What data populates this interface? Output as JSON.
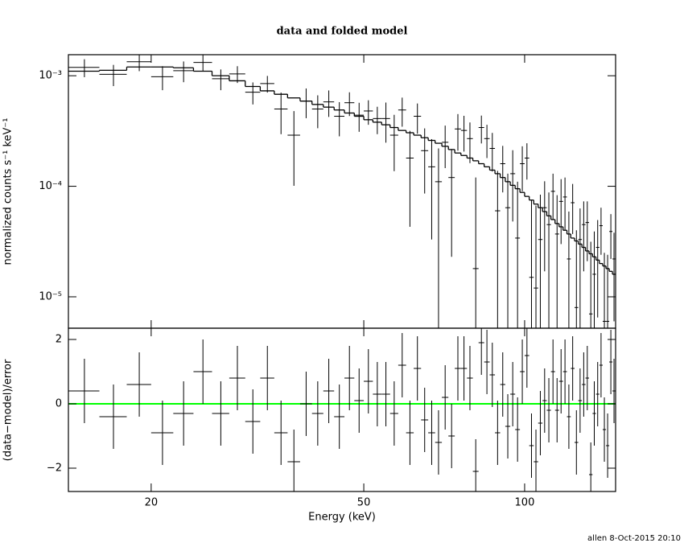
{
  "chart_data": [
    {
      "type": "errorbar",
      "title": "data and folded model",
      "ylabel": "normalized counts s⁻¹ keV⁻¹",
      "ylog": true,
      "xlog": true,
      "xlim": [
        14,
        148
      ],
      "ylim": [
        5.2e-06,
        0.00155
      ],
      "xticks": [
        20,
        50,
        100
      ],
      "yticks": [
        {
          "value": 0.001,
          "label": "10⁻³"
        },
        {
          "value": 0.0001,
          "label": "10⁻⁴"
        },
        {
          "value": 1e-05,
          "label": "10⁻⁵"
        }
      ],
      "color": "#000000",
      "xerr": 1,
      "x": [
        15,
        17,
        19,
        21,
        23,
        25,
        27,
        29,
        31,
        33,
        35,
        37,
        39,
        41,
        43,
        45,
        47,
        49,
        51,
        53,
        55,
        57,
        59,
        61,
        63,
        65,
        67,
        69,
        71,
        73,
        75,
        77,
        79,
        81,
        83,
        85,
        87,
        89,
        91,
        93,
        95,
        97,
        99,
        101,
        103,
        105,
        107,
        109,
        111,
        113,
        115,
        117,
        119,
        121,
        123,
        125,
        127,
        129,
        131,
        133,
        135,
        137,
        139,
        141,
        143,
        145,
        147
      ],
      "y": [
        0.00119,
        0.00103,
        0.00134,
        0.00098,
        0.00111,
        0.00132,
        0.00094,
        0.00104,
        0.00071,
        0.00085,
        0.0005,
        0.00029,
        0.00059,
        0.0005,
        0.00058,
        0.00043,
        0.00057,
        0.00044,
        0.00048,
        0.00041,
        0.00041,
        0.00029,
        0.00049,
        0.00018,
        0.00043,
        0.00021,
        0.00015,
        0.00011,
        0.00025,
        0.00012,
        0.00033,
        0.00032,
        0.00027,
        1.8e-05,
        0.00034,
        0.00027,
        0.00022,
        6e-05,
        0.00016,
        6.4e-05,
        0.00013,
        3.4e-05,
        0.00016,
        0.00018,
        1.5e-05,
        1.2e-05,
        3.3e-05,
        6.4e-05,
        4.5e-05,
        9e-05,
        3.7e-05,
        7.3e-05,
        8e-05,
        2.2e-05,
        7.1e-05,
        8e-06,
        3.3e-05,
        4.5e-05,
        4.7e-05,
        7e-06,
        1.6e-05,
        2.8e-05,
        4.4e-05,
        6e-06,
        6e-06,
        3.9e-05,
        2.2e-05
      ],
      "yerr": [
        0.00022,
        0.000224,
        0.00024,
        0.00024,
        0.000236,
        0.00022,
        0.0002,
        0.00018,
        0.00016,
        0.000146,
        0.000204,
        0.000189,
        0.000177,
        0.000165,
        0.000156,
        0.000147,
        0.000138,
        0.000129,
        0.00012,
        0.000114,
        0.000162,
        0.000153,
        0.000144,
        0.000137,
        0.000131,
        0.000124,
        0.000117,
        0.00011,
        0.000104,
        9.7e-05,
        0.00012,
        0.000114,
        0.000108,
        0.000102,
        9.6e-05,
        9e-05,
        8.4e-05,
        7.8e-05,
        7.2e-05,
        6.6e-05,
        8.2e-05,
        7.6e-05,
        7e-05,
        6.5e-05,
        6e-05,
        5.5e-05,
        5.1e-05,
        4.7e-05,
        4.3e-05,
        4e-05,
        4.6e-05,
        4.3e-05,
        4e-05,
        3.7e-05,
        3.4e-05,
        3.2e-05,
        3e-05,
        2.8e-05,
        2.6e-05,
        2.45e-05,
        2.3e-05,
        2.15e-05,
        2e-05,
        1.9e-05,
        1.8e-05,
        1.7e-05,
        1.6e-05
      ],
      "model": {
        "color": "#000000",
        "values": [
          0.0011,
          0.00112,
          0.0012,
          0.0012,
          0.00118,
          0.0011,
          0.001,
          0.0009,
          0.0008,
          0.00073,
          0.00068,
          0.00063,
          0.00059,
          0.00055,
          0.00052,
          0.00049,
          0.00046,
          0.00043,
          0.0004,
          0.00038,
          0.00036,
          0.00034,
          0.00032,
          0.000305,
          0.00029,
          0.000275,
          0.00026,
          0.000245,
          0.00023,
          0.000215,
          0.0002,
          0.00019,
          0.00018,
          0.00017,
          0.00016,
          0.00015,
          0.00014,
          0.00013,
          0.00012,
          0.00011,
          0.000102,
          9.5e-05,
          8.8e-05,
          8.1e-05,
          7.5e-05,
          6.9e-05,
          6.4e-05,
          5.9e-05,
          5.4e-05,
          5e-05,
          4.6e-05,
          4.3e-05,
          4e-05,
          3.7e-05,
          3.4e-05,
          3.2e-05,
          3e-05,
          2.8e-05,
          2.6e-05,
          2.45e-05,
          2.3e-05,
          2.15e-05,
          2e-05,
          1.9e-05,
          1.8e-05,
          1.7e-05,
          1.6e-05
        ]
      }
    },
    {
      "type": "errorbar",
      "xlabel": "Energy (keV)",
      "ylabel": "(data−model)/error",
      "xlog": true,
      "xlim": [
        14,
        148
      ],
      "ylim": [
        -2.725,
        2.35
      ],
      "xticks": [
        20,
        50,
        100
      ],
      "yticks": [
        {
          "value": 2,
          "label": "2"
        },
        {
          "value": 0,
          "label": "0"
        },
        {
          "value": -2,
          "label": "−2"
        }
      ],
      "color": "#000000",
      "xerr": 1,
      "x": [
        15,
        17,
        19,
        21,
        23,
        25,
        27,
        29,
        31,
        33,
        35,
        37,
        39,
        41,
        43,
        45,
        47,
        49,
        51,
        53,
        55,
        57,
        59,
        61,
        63,
        65,
        67,
        69,
        71,
        73,
        75,
        77,
        79,
        81,
        83,
        85,
        87,
        89,
        91,
        93,
        95,
        97,
        99,
        101,
        103,
        105,
        107,
        109,
        111,
        113,
        115,
        117,
        119,
        121,
        123,
        125,
        127,
        129,
        131,
        133,
        135,
        137,
        139,
        141,
        143,
        145,
        147
      ],
      "y": [
        0.4,
        -0.4,
        0.6,
        -0.9,
        -0.3,
        1.0,
        -0.3,
        0.8,
        -0.55,
        0.8,
        -0.9,
        -1.8,
        0.0,
        -0.3,
        0.4,
        -0.4,
        0.8,
        0.1,
        0.7,
        0.3,
        0.3,
        -0.3,
        1.2,
        -0.9,
        1.1,
        -0.5,
        -0.9,
        -1.2,
        0.2,
        -1.0,
        1.1,
        1.1,
        0.8,
        -2.1,
        1.9,
        1.3,
        0.9,
        -0.9,
        0.6,
        -0.7,
        0.3,
        -0.8,
        1.0,
        1.5,
        -1.3,
        -1.8,
        -0.6,
        0.1,
        -0.2,
        1.0,
        -0.2,
        0.7,
        1.0,
        -0.4,
        1.1,
        -1.2,
        0.1,
        0.6,
        0.8,
        -2.2,
        -0.3,
        0.3,
        1.2,
        -0.8,
        -1.3,
        1.3,
        0.4
      ],
      "yerr": 1,
      "reference_line": {
        "value": 0,
        "color": "#00ff00"
      }
    },
    {
      "type": "footer",
      "text": "allen  8-Oct-2015 20:10"
    }
  ]
}
